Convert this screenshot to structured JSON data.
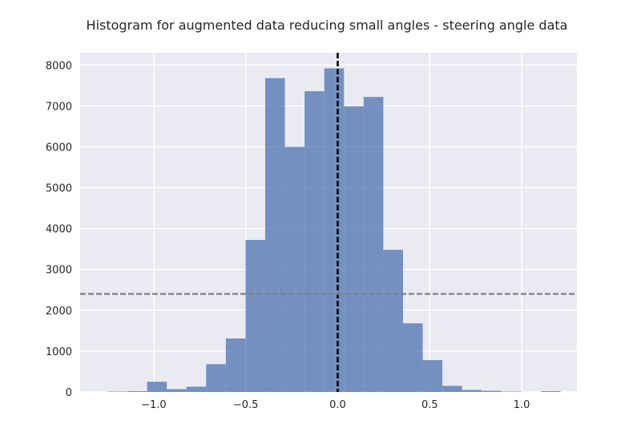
{
  "chart_data": {
    "type": "bar",
    "title": "Histogram for augmented data reducing small angles - steering angle data",
    "xlabel": "",
    "ylabel": "",
    "xlim": [
      -1.4,
      1.3
    ],
    "ylim": [
      0,
      8300
    ],
    "grid": true,
    "bar_color": "#4c72b0",
    "background_color": "#eaeaf2",
    "x_ticks": [
      -1.0,
      -0.5,
      0.0,
      0.5,
      1.0
    ],
    "x_tick_labels": [
      "−1.0",
      "−0.5",
      "0.0",
      "0.5",
      "1.0"
    ],
    "y_ticks": [
      0,
      1000,
      2000,
      3000,
      4000,
      5000,
      6000,
      7000,
      8000
    ],
    "y_tick_labels": [
      "0",
      "1000",
      "2000",
      "3000",
      "4000",
      "5000",
      "6000",
      "7000",
      "8000"
    ],
    "bins": [
      {
        "x0": -1.25,
        "x1": -1.143,
        "value": 10
      },
      {
        "x0": -1.143,
        "x1": -1.036,
        "value": 20
      },
      {
        "x0": -1.036,
        "x1": -0.929,
        "value": 250
      },
      {
        "x0": -0.929,
        "x1": -0.822,
        "value": 70
      },
      {
        "x0": -0.822,
        "x1": -0.715,
        "value": 130
      },
      {
        "x0": -0.715,
        "x1": -0.608,
        "value": 680
      },
      {
        "x0": -0.608,
        "x1": -0.501,
        "value": 1310
      },
      {
        "x0": -0.501,
        "x1": -0.394,
        "value": 3720
      },
      {
        "x0": -0.394,
        "x1": -0.287,
        "value": 7680
      },
      {
        "x0": -0.287,
        "x1": -0.18,
        "value": 6000
      },
      {
        "x0": -0.18,
        "x1": -0.073,
        "value": 7360
      },
      {
        "x0": -0.073,
        "x1": 0.034,
        "value": 7920
      },
      {
        "x0": 0.034,
        "x1": 0.141,
        "value": 6990
      },
      {
        "x0": 0.141,
        "x1": 0.248,
        "value": 7220
      },
      {
        "x0": 0.248,
        "x1": 0.355,
        "value": 3480
      },
      {
        "x0": 0.355,
        "x1": 0.462,
        "value": 1680
      },
      {
        "x0": 0.462,
        "x1": 0.569,
        "value": 780
      },
      {
        "x0": 0.569,
        "x1": 0.676,
        "value": 150
      },
      {
        "x0": 0.676,
        "x1": 0.783,
        "value": 50
      },
      {
        "x0": 0.783,
        "x1": 0.89,
        "value": 30
      },
      {
        "x0": 0.89,
        "x1": 0.997,
        "value": 10
      },
      {
        "x0": 0.997,
        "x1": 1.104,
        "value": 0
      },
      {
        "x0": 1.104,
        "x1": 1.211,
        "value": 20
      }
    ],
    "reference_lines": [
      {
        "orientation": "vertical",
        "value": 0.0,
        "color": "#000000",
        "style": "dashed"
      },
      {
        "orientation": "horizontal",
        "value": 2400,
        "color": "#808080",
        "style": "dashed"
      }
    ]
  }
}
